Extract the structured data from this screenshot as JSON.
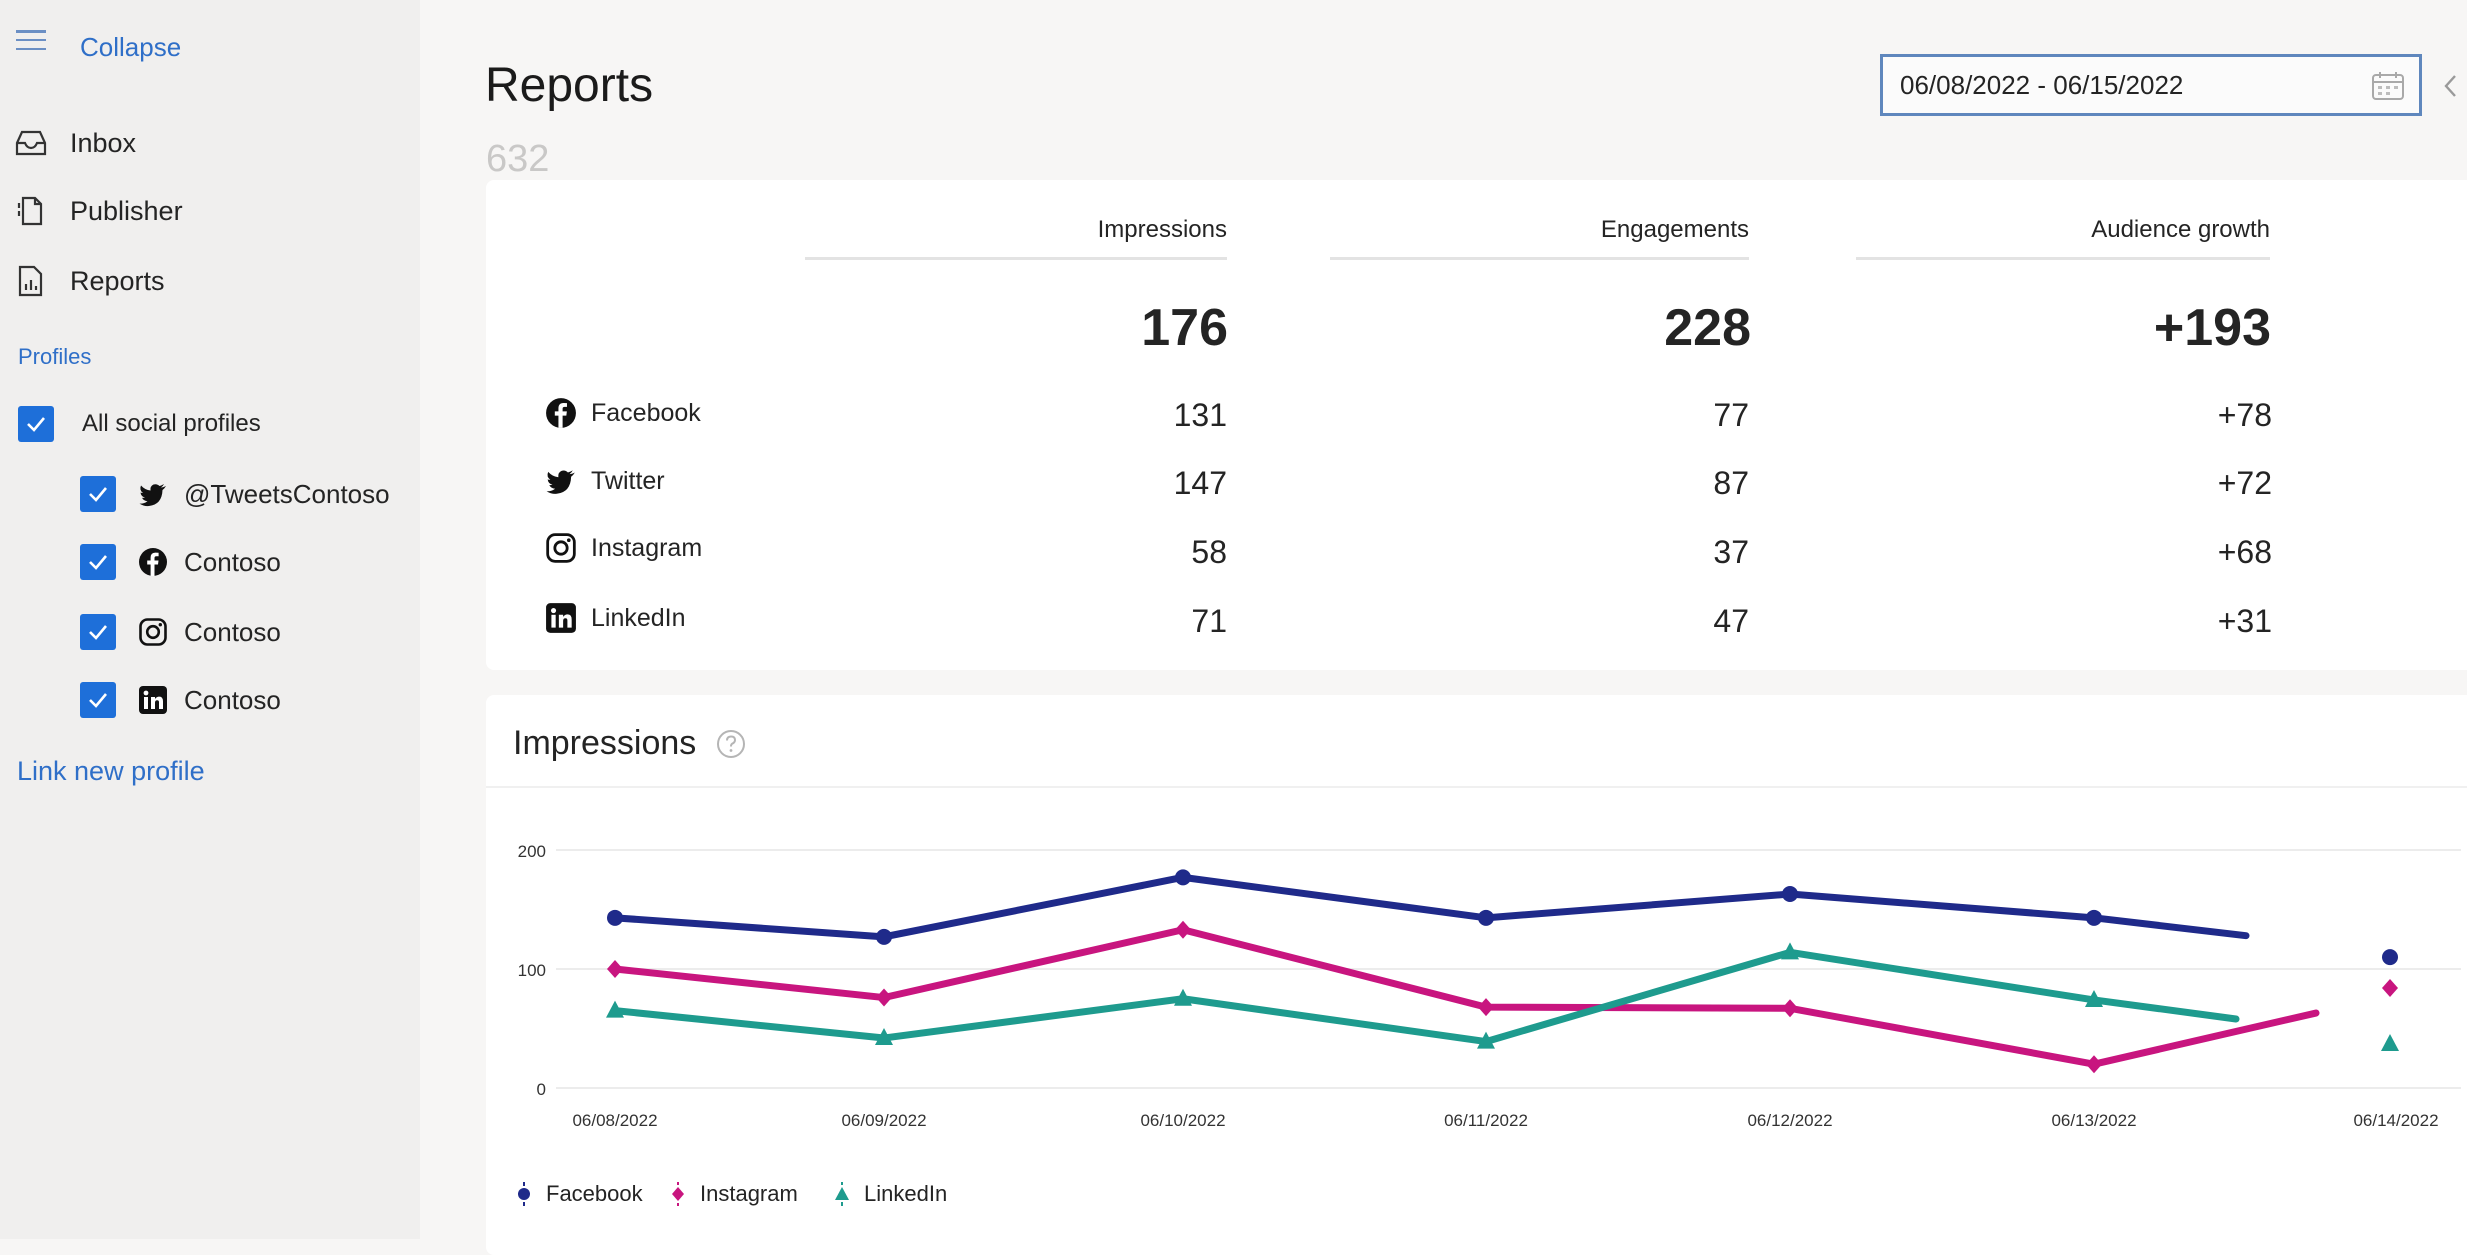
{
  "sidebar": {
    "collapse_label": "Collapse",
    "nav": [
      {
        "label": "Inbox",
        "icon": "inbox-icon"
      },
      {
        "label": "Publisher",
        "icon": "publisher-icon"
      },
      {
        "label": "Reports",
        "icon": "reports-icon"
      }
    ],
    "profiles_label": "Profiles",
    "all_profiles_label": "All social profiles",
    "profiles": [
      {
        "label": "@TweetsContoso",
        "network": "twitter"
      },
      {
        "label": "Contoso",
        "network": "facebook"
      },
      {
        "label": "Contoso",
        "network": "instagram"
      },
      {
        "label": "Contoso",
        "network": "linkedin"
      }
    ],
    "link_new_label": "Link new profile"
  },
  "header": {
    "title": "Reports",
    "total_count": "632",
    "date_range": "06/08/2022 - 06/15/2022"
  },
  "summary": {
    "columns": [
      "Impressions",
      "Engagements",
      "Audience growth"
    ],
    "totals": [
      "176",
      "228",
      "+193"
    ],
    "rows": [
      {
        "network": "Facebook",
        "values": [
          "131",
          "77",
          "+78"
        ]
      },
      {
        "network": "Twitter",
        "values": [
          "147",
          "87",
          "+72"
        ]
      },
      {
        "network": "Instagram",
        "values": [
          "58",
          "37",
          "+68"
        ]
      },
      {
        "network": "LinkedIn",
        "values": [
          "71",
          "47",
          "+31"
        ]
      }
    ]
  },
  "chart_title": "Impressions",
  "chart_data": {
    "type": "line",
    "title": "Impressions",
    "x": [
      "06/08/2022",
      "06/09/2022",
      "06/10/2022",
      "06/11/2022",
      "06/12/2022",
      "06/13/2022",
      "06/14/2022"
    ],
    "y_ticks": [
      "200",
      "100",
      "0"
    ],
    "ylim": [
      0,
      200
    ],
    "series": [
      {
        "name": "Facebook",
        "color": "#1f2a8a",
        "marker": "circle",
        "values": [
          143,
          127,
          177,
          143,
          163,
          143,
          110
        ]
      },
      {
        "name": "Instagram",
        "color": "#c8157f",
        "marker": "diamond",
        "values": [
          100,
          76,
          133,
          68,
          67,
          20,
          84
        ]
      },
      {
        "name": "LinkedIn",
        "color": "#1e9b8e",
        "marker": "triangle",
        "values": [
          65,
          42,
          75,
          39,
          114,
          74,
          37
        ]
      }
    ]
  },
  "colors": {
    "accent": "#2f6fc8",
    "checkbox": "#1e6fd9"
  }
}
